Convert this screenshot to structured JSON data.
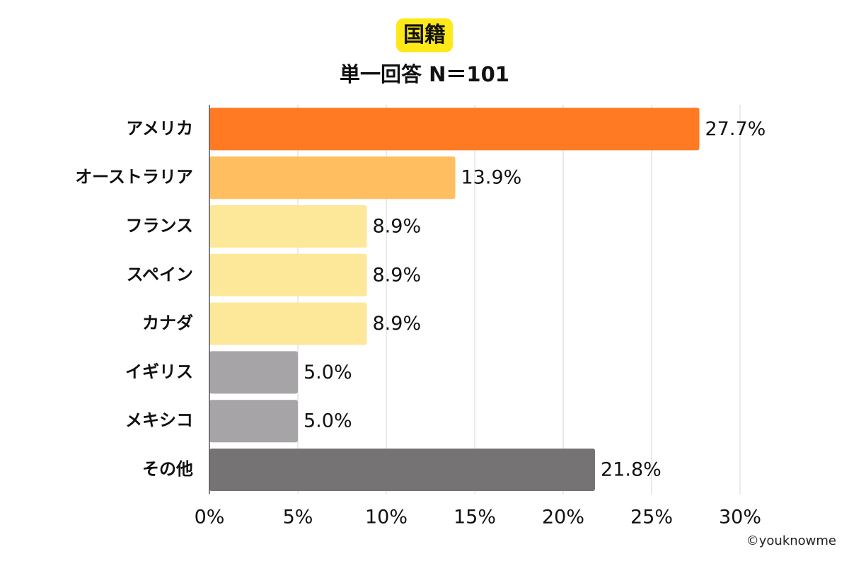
{
  "header": {
    "title": "国籍",
    "subtitle": "単一回答  N＝101"
  },
  "footer": {
    "credit": "©youknowme"
  },
  "chart_data": {
    "type": "bar",
    "orientation": "horizontal",
    "title": "国籍",
    "subtitle": "単一回答  N＝101",
    "categories": [
      "アメリカ",
      "オーストラリア",
      "フランス",
      "スペイン",
      "カナダ",
      "イギリス",
      "メキシコ",
      "その他"
    ],
    "values": [
      27.7,
      13.9,
      8.9,
      8.9,
      8.9,
      5.0,
      5.0,
      21.8
    ],
    "value_labels": [
      "27.7%",
      "13.9%",
      "8.9%",
      "8.9%",
      "8.9%",
      "5.0%",
      "5.0%",
      "21.8%"
    ],
    "colors": [
      "#FF7A22",
      "#FFBF60",
      "#FDE89A",
      "#FDE89A",
      "#FDE89A",
      "#A6A4A6",
      "#A6A4A6",
      "#767375"
    ],
    "xlim": [
      0,
      30
    ],
    "xticks": [
      0,
      5,
      10,
      15,
      20,
      25,
      30
    ],
    "xtick_labels": [
      "0%",
      "5%",
      "10%",
      "15%",
      "20%",
      "25%",
      "30%"
    ],
    "grid": true,
    "legend": false
  }
}
